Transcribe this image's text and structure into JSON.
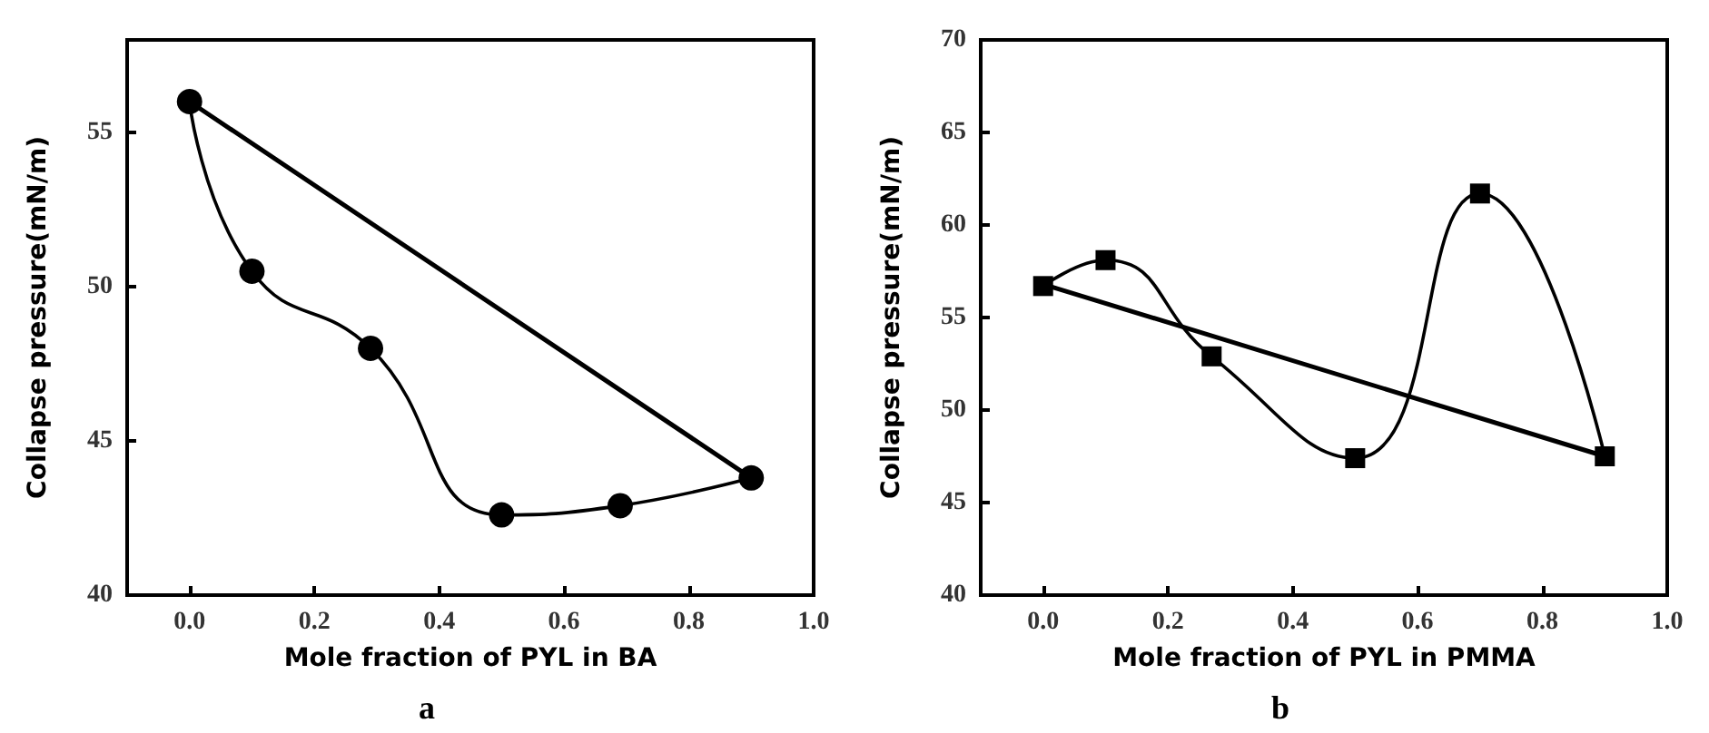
{
  "chart_data": [
    {
      "type": "line",
      "title": "a",
      "xlabel": "Mole fraction of PYL in BA",
      "ylabel": "Collapse pressure(mN/m)",
      "xlim": [
        -0.1,
        1.0
      ],
      "xticks": [
        {
          "value": 0,
          "label": "0.0"
        },
        {
          "value": 0.2,
          "label": "0.2"
        },
        {
          "value": 0.4,
          "label": "0.4"
        },
        {
          "value": 0.6,
          "label": "0.6"
        },
        {
          "value": 0.8,
          "label": "0.8"
        },
        {
          "value": 1.0,
          "label": "1.0"
        }
      ],
      "ylim": [
        40,
        58
      ],
      "yticks": [
        40,
        45,
        50,
        55
      ],
      "line_style": "solid",
      "series": [
        {
          "color": "#000000",
          "marker": "circle",
          "x": [
            0,
            0.1,
            0.29,
            0.5,
            0.69,
            0.9
          ],
          "values": [
            56.0,
            50.5,
            48.0,
            42.6,
            42.9,
            43.8
          ]
        },
        {
          "color": "#000000",
          "marker": "none",
          "x": [
            0,
            0.9
          ],
          "values": [
            56.0,
            43.8
          ]
        }
      ]
    },
    {
      "type": "line",
      "title": "b",
      "xlabel": "Mole fraction of PYL in PMMA",
      "ylabel": "Collapse pressure(mN/m)",
      "xlim": [
        -0.1,
        1.0
      ],
      "xticks": [
        {
          "value": 0,
          "label": "0.0"
        },
        {
          "value": 0.2,
          "label": "0.2"
        },
        {
          "value": 0.4,
          "label": "0.4"
        },
        {
          "value": 0.6,
          "label": "0.6"
        },
        {
          "value": 0.8,
          "label": "0.8"
        },
        {
          "value": 1.0,
          "label": "1.0"
        }
      ],
      "ylim": [
        40,
        70
      ],
      "yticks": [
        40,
        45,
        50,
        55,
        60,
        65,
        70
      ],
      "line_style": "solid",
      "series": [
        {
          "color": "#000000",
          "marker": "square",
          "x": [
            0,
            0.1,
            0.27,
            0.5,
            0.7,
            0.9
          ],
          "values": [
            56.7,
            58.1,
            52.9,
            47.4,
            61.7,
            47.5
          ]
        },
        {
          "color": "#000000",
          "marker": "none",
          "x": [
            0,
            0.9
          ],
          "values": [
            56.8,
            47.5
          ]
        }
      ]
    }
  ]
}
